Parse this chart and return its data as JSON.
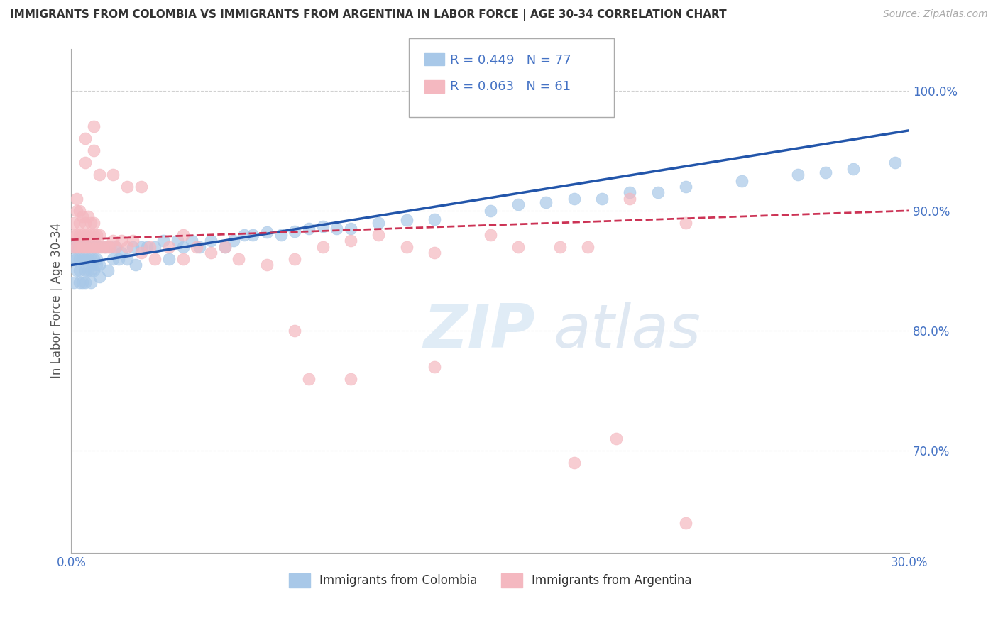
{
  "title": "IMMIGRANTS FROM COLOMBIA VS IMMIGRANTS FROM ARGENTINA IN LABOR FORCE | AGE 30-34 CORRELATION CHART",
  "source": "Source: ZipAtlas.com",
  "ylabel": "In Labor Force | Age 30-34",
  "xlim": [
    0.0,
    0.3
  ],
  "ylim": [
    0.615,
    1.035
  ],
  "xticks": [
    0.0,
    0.3
  ],
  "xtick_labels": [
    "0.0%",
    "30.0%"
  ],
  "ytick_labels": [
    "70.0%",
    "80.0%",
    "90.0%",
    "100.0%"
  ],
  "yticks": [
    0.7,
    0.8,
    0.9,
    1.0
  ],
  "colombia_color": "#a8c8e8",
  "argentina_color": "#f4b8c0",
  "colombia_R": 0.449,
  "colombia_N": 77,
  "argentina_R": 0.063,
  "argentina_N": 61,
  "colombia_line_color": "#2255aa",
  "argentina_line_color": "#cc3355",
  "watermark_zip": "ZIP",
  "watermark_atlas": "atlas",
  "colombia_points_x": [
    0.001,
    0.001,
    0.001,
    0.002,
    0.002,
    0.002,
    0.003,
    0.003,
    0.003,
    0.003,
    0.004,
    0.004,
    0.004,
    0.005,
    0.005,
    0.005,
    0.006,
    0.006,
    0.006,
    0.007,
    0.007,
    0.007,
    0.008,
    0.008,
    0.008,
    0.009,
    0.009,
    0.01,
    0.01,
    0.01,
    0.012,
    0.013,
    0.014,
    0.015,
    0.016,
    0.017,
    0.018,
    0.02,
    0.022,
    0.023,
    0.025,
    0.027,
    0.03,
    0.033,
    0.035,
    0.038,
    0.04,
    0.043,
    0.046,
    0.05,
    0.055,
    0.058,
    0.062,
    0.065,
    0.07,
    0.075,
    0.08,
    0.085,
    0.09,
    0.095,
    0.1,
    0.11,
    0.12,
    0.13,
    0.15,
    0.16,
    0.17,
    0.18,
    0.19,
    0.2,
    0.21,
    0.22,
    0.24,
    0.26,
    0.27,
    0.28,
    0.295
  ],
  "colombia_points_y": [
    0.86,
    0.84,
    0.87,
    0.85,
    0.87,
    0.86,
    0.86,
    0.84,
    0.87,
    0.85,
    0.86,
    0.84,
    0.87,
    0.85,
    0.86,
    0.84,
    0.86,
    0.85,
    0.87,
    0.86,
    0.84,
    0.85,
    0.86,
    0.85,
    0.87,
    0.855,
    0.86,
    0.87,
    0.855,
    0.845,
    0.87,
    0.85,
    0.87,
    0.86,
    0.87,
    0.86,
    0.865,
    0.86,
    0.87,
    0.855,
    0.87,
    0.87,
    0.87,
    0.875,
    0.86,
    0.875,
    0.87,
    0.875,
    0.87,
    0.875,
    0.87,
    0.875,
    0.88,
    0.88,
    0.882,
    0.88,
    0.883,
    0.885,
    0.887,
    0.885,
    0.885,
    0.89,
    0.892,
    0.893,
    0.9,
    0.905,
    0.907,
    0.91,
    0.91,
    0.915,
    0.915,
    0.92,
    0.925,
    0.93,
    0.932,
    0.935,
    0.94
  ],
  "argentina_points_x": [
    0.001,
    0.001,
    0.001,
    0.002,
    0.002,
    0.002,
    0.002,
    0.003,
    0.003,
    0.003,
    0.003,
    0.004,
    0.004,
    0.004,
    0.005,
    0.005,
    0.005,
    0.006,
    0.006,
    0.006,
    0.007,
    0.007,
    0.007,
    0.008,
    0.008,
    0.008,
    0.009,
    0.009,
    0.01,
    0.01,
    0.011,
    0.012,
    0.013,
    0.014,
    0.015,
    0.016,
    0.018,
    0.02,
    0.022,
    0.025,
    0.028,
    0.03,
    0.035,
    0.04,
    0.045,
    0.05,
    0.055,
    0.06,
    0.07,
    0.08,
    0.09,
    0.1,
    0.11,
    0.12,
    0.13,
    0.15,
    0.16,
    0.175,
    0.185,
    0.2,
    0.22
  ],
  "argentina_points_y": [
    0.87,
    0.88,
    0.89,
    0.87,
    0.88,
    0.9,
    0.91,
    0.87,
    0.88,
    0.89,
    0.9,
    0.87,
    0.88,
    0.895,
    0.87,
    0.88,
    0.89,
    0.87,
    0.88,
    0.895,
    0.87,
    0.88,
    0.89,
    0.87,
    0.88,
    0.89,
    0.87,
    0.88,
    0.87,
    0.88,
    0.87,
    0.87,
    0.87,
    0.87,
    0.875,
    0.87,
    0.875,
    0.87,
    0.875,
    0.865,
    0.87,
    0.86,
    0.87,
    0.86,
    0.87,
    0.865,
    0.87,
    0.86,
    0.855,
    0.86,
    0.87,
    0.875,
    0.88,
    0.87,
    0.865,
    0.88,
    0.87,
    0.87,
    0.87,
    0.91,
    0.89
  ],
  "argentina_extra_x": [
    0.005,
    0.005,
    0.008,
    0.008,
    0.01,
    0.015,
    0.02,
    0.025,
    0.04,
    0.08,
    0.085,
    0.1,
    0.13,
    0.18,
    0.195,
    0.22
  ],
  "argentina_extra_y": [
    0.96,
    0.94,
    0.97,
    0.95,
    0.93,
    0.93,
    0.92,
    0.92,
    0.88,
    0.8,
    0.76,
    0.76,
    0.77,
    0.69,
    0.71,
    0.64
  ]
}
